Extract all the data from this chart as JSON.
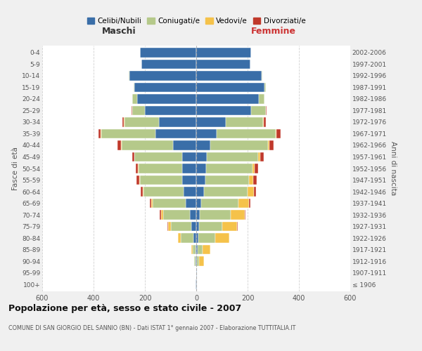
{
  "age_groups": [
    "100+",
    "95-99",
    "90-94",
    "85-89",
    "80-84",
    "75-79",
    "70-74",
    "65-69",
    "60-64",
    "55-59",
    "50-54",
    "45-49",
    "40-44",
    "35-39",
    "30-34",
    "25-29",
    "20-24",
    "15-19",
    "10-14",
    "5-9",
    "0-4"
  ],
  "birth_years": [
    "≤ 1906",
    "1907-1911",
    "1912-1916",
    "1917-1921",
    "1922-1926",
    "1927-1931",
    "1932-1936",
    "1937-1941",
    "1942-1946",
    "1947-1951",
    "1952-1956",
    "1957-1961",
    "1962-1966",
    "1967-1971",
    "1972-1976",
    "1977-1981",
    "1982-1986",
    "1987-1991",
    "1992-1996",
    "1997-2001",
    "2002-2006"
  ],
  "maschi": {
    "celibi": [
      2,
      1,
      2,
      3,
      10,
      18,
      25,
      40,
      50,
      55,
      55,
      55,
      90,
      160,
      145,
      200,
      230,
      240,
      260,
      215,
      220
    ],
    "coniugati": [
      0,
      0,
      5,
      12,
      50,
      80,
      105,
      130,
      155,
      165,
      170,
      185,
      200,
      210,
      135,
      50,
      20,
      5,
      2,
      0,
      0
    ],
    "vedovi": [
      0,
      0,
      2,
      5,
      10,
      12,
      8,
      5,
      3,
      3,
      2,
      2,
      2,
      2,
      2,
      0,
      0,
      0,
      0,
      0,
      0
    ],
    "divorziati": [
      0,
      0,
      0,
      0,
      0,
      2,
      5,
      5,
      8,
      10,
      8,
      8,
      15,
      8,
      5,
      2,
      0,
      0,
      0,
      0,
      0
    ]
  },
  "femmine": {
    "nubili": [
      2,
      2,
      3,
      5,
      8,
      10,
      15,
      20,
      30,
      35,
      38,
      40,
      55,
      80,
      115,
      215,
      245,
      265,
      255,
      210,
      215
    ],
    "coniugate": [
      0,
      0,
      8,
      20,
      65,
      90,
      120,
      145,
      170,
      170,
      180,
      200,
      225,
      230,
      145,
      55,
      20,
      5,
      2,
      0,
      0
    ],
    "vedove": [
      1,
      2,
      18,
      30,
      55,
      60,
      55,
      40,
      25,
      18,
      10,
      8,
      5,
      3,
      2,
      0,
      0,
      0,
      0,
      0,
      0
    ],
    "divorziate": [
      0,
      0,
      0,
      0,
      0,
      2,
      3,
      5,
      8,
      12,
      12,
      15,
      15,
      15,
      8,
      3,
      1,
      0,
      0,
      0,
      0
    ]
  },
  "color_celibi": "#3a6ea8",
  "color_coniugati": "#b5c98a",
  "color_vedovi": "#f5c24a",
  "color_divorziati": "#c0392b",
  "bg_color": "#f0f0f0",
  "plot_bg": "#ffffff",
  "grid_color": "#cccccc",
  "title": "Popolazione per età, sesso e stato civile - 2007",
  "subtitle": "COMUNE DI SAN GIORGIO DEL SANNIO (BN) - Dati ISTAT 1° gennaio 2007 - Elaborazione TUTTITALIA.IT",
  "xlabel_left": "Maschi",
  "xlabel_right": "Femmine",
  "ylabel_left": "Fasce di età",
  "ylabel_right": "Anni di nascita",
  "xmax": 600,
  "legend_labels": [
    "Celibi/Nubili",
    "Coniugati/e",
    "Vedovi/e",
    "Divorziati/e"
  ]
}
